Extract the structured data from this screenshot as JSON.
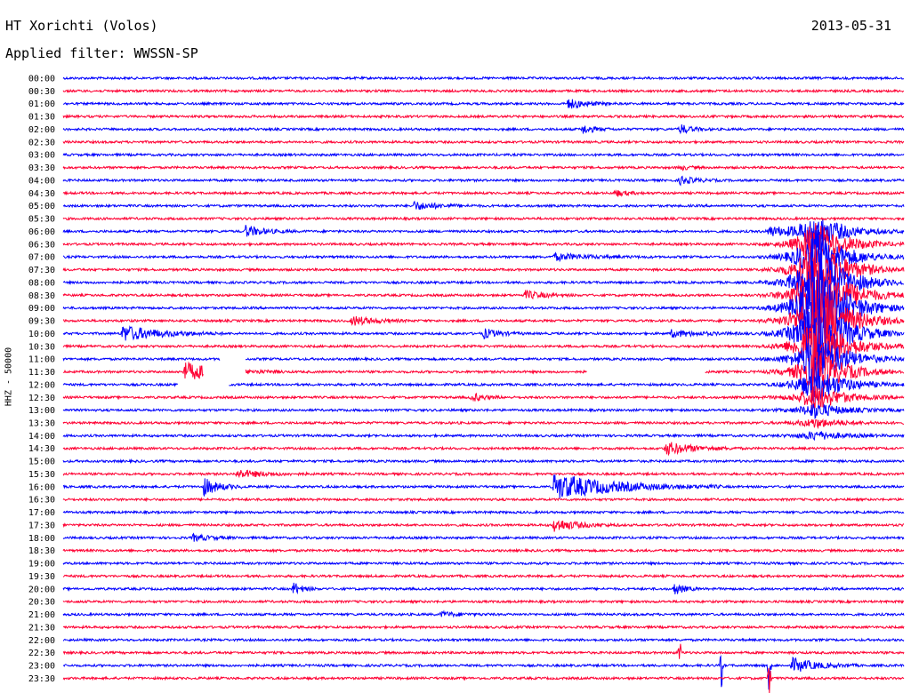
{
  "header": {
    "station": "HT Xorichti (Volos)",
    "date": "2013-05-31",
    "filter_label": "Applied filter: WWSSN-SP"
  },
  "chart_data": {
    "type": "line",
    "title": "HT Xorichti (Volos)",
    "ylabel": "HHZ - 50000",
    "xlabel": "",
    "trace_colors": [
      "#0000ff",
      "#ff0033"
    ],
    "row_labels": [
      "00:00",
      "00:30",
      "01:00",
      "01:30",
      "02:00",
      "02:30",
      "03:00",
      "03:30",
      "04:00",
      "04:30",
      "05:00",
      "05:30",
      "06:00",
      "06:30",
      "07:00",
      "07:30",
      "08:00",
      "08:30",
      "09:00",
      "09:30",
      "10:00",
      "10:30",
      "11:00",
      "11:30",
      "12:00",
      "12:30",
      "13:00",
      "13:30",
      "14:00",
      "14:30",
      "15:00",
      "15:30",
      "16:00",
      "16:30",
      "17:00",
      "17:30",
      "18:00",
      "18:30",
      "19:00",
      "19:30",
      "20:00",
      "20:30",
      "21:00",
      "21:30",
      "22:00",
      "22:30",
      "23:00",
      "23:30"
    ],
    "row_minutes": 30,
    "events": [
      {
        "row": 2,
        "minute": 18.0,
        "amp": 0.6,
        "dur": 0.6
      },
      {
        "row": 4,
        "minute": 18.5,
        "amp": 0.6,
        "dur": 0.4
      },
      {
        "row": 4,
        "minute": 22.0,
        "amp": 0.6,
        "dur": 0.4
      },
      {
        "row": 7,
        "minute": 22.0,
        "amp": 0.3,
        "dur": 0.3
      },
      {
        "row": 8,
        "minute": 22.0,
        "amp": 0.5,
        "dur": 0.5
      },
      {
        "row": 9,
        "minute": 19.7,
        "amp": 0.4,
        "dur": 0.4
      },
      {
        "row": 10,
        "minute": 12.5,
        "amp": 0.5,
        "dur": 0.8
      },
      {
        "row": 12,
        "minute": 6.5,
        "amp": 0.7,
        "dur": 0.6
      },
      {
        "row": 12,
        "minute": 25.2,
        "amp": 0.6,
        "dur": 0.5
      },
      {
        "row": 14,
        "minute": 17.5,
        "amp": 0.4,
        "dur": 1.2
      },
      {
        "row": 17,
        "minute": 16.5,
        "amp": 0.5,
        "dur": 0.6
      },
      {
        "row": 19,
        "minute": 10.3,
        "amp": 0.6,
        "dur": 0.7
      },
      {
        "row": 20,
        "minute": 2.1,
        "amp": 1.0,
        "dur": 1.2
      },
      {
        "row": 20,
        "minute": 15.0,
        "amp": 0.6,
        "dur": 0.5
      },
      {
        "row": 20,
        "minute": 21.7,
        "amp": 0.4,
        "dur": 1.0
      },
      {
        "row": 23,
        "minute": 4.3,
        "amp": 1.1,
        "dur": 1.2
      },
      {
        "row": 25,
        "minute": 14.6,
        "amp": 0.5,
        "dur": 0.4
      },
      {
        "row": 29,
        "minute": 21.5,
        "amp": 0.8,
        "dur": 0.9
      },
      {
        "row": 31,
        "minute": 6.2,
        "amp": 0.5,
        "dur": 0.9
      },
      {
        "row": 32,
        "minute": 5.0,
        "amp": 1.1,
        "dur": 0.5
      },
      {
        "row": 32,
        "minute": 17.5,
        "amp": 1.6,
        "dur": 2.0
      },
      {
        "row": 35,
        "minute": 17.5,
        "amp": 0.8,
        "dur": 0.8
      },
      {
        "row": 36,
        "minute": 4.6,
        "amp": 0.4,
        "dur": 0.6
      },
      {
        "row": 40,
        "minute": 8.2,
        "amp": 0.8,
        "dur": 0.3
      },
      {
        "row": 40,
        "minute": 21.8,
        "amp": 0.8,
        "dur": 0.3
      },
      {
        "row": 42,
        "minute": 13.5,
        "amp": 0.3,
        "dur": 0.6
      },
      {
        "row": 46,
        "minute": 26.0,
        "amp": 0.9,
        "dur": 0.8
      }
    ],
    "large_event": {
      "start_row": 12,
      "end_row": 28,
      "minute": 26.8,
      "peak_row": 18
    },
    "data_gaps": [
      {
        "row": 22,
        "from_min": 5.6,
        "to_min": 6.5
      },
      {
        "row": 23,
        "from_min": 5.0,
        "to_min": 6.5
      },
      {
        "row": 23,
        "from_min": 18.7,
        "to_min": 22.9
      },
      {
        "row": 24,
        "from_min": 4.1,
        "to_min": 5.9
      }
    ],
    "spikes": [
      {
        "row": 45,
        "minute": 22.0,
        "amp": 1.0
      },
      {
        "row": 46,
        "minute": 23.5,
        "amp": 2.0
      },
      {
        "row": 46,
        "minute": 25.2,
        "amp": 3.0
      },
      {
        "row": 47,
        "minute": 25.2,
        "amp": 1.2
      }
    ]
  }
}
